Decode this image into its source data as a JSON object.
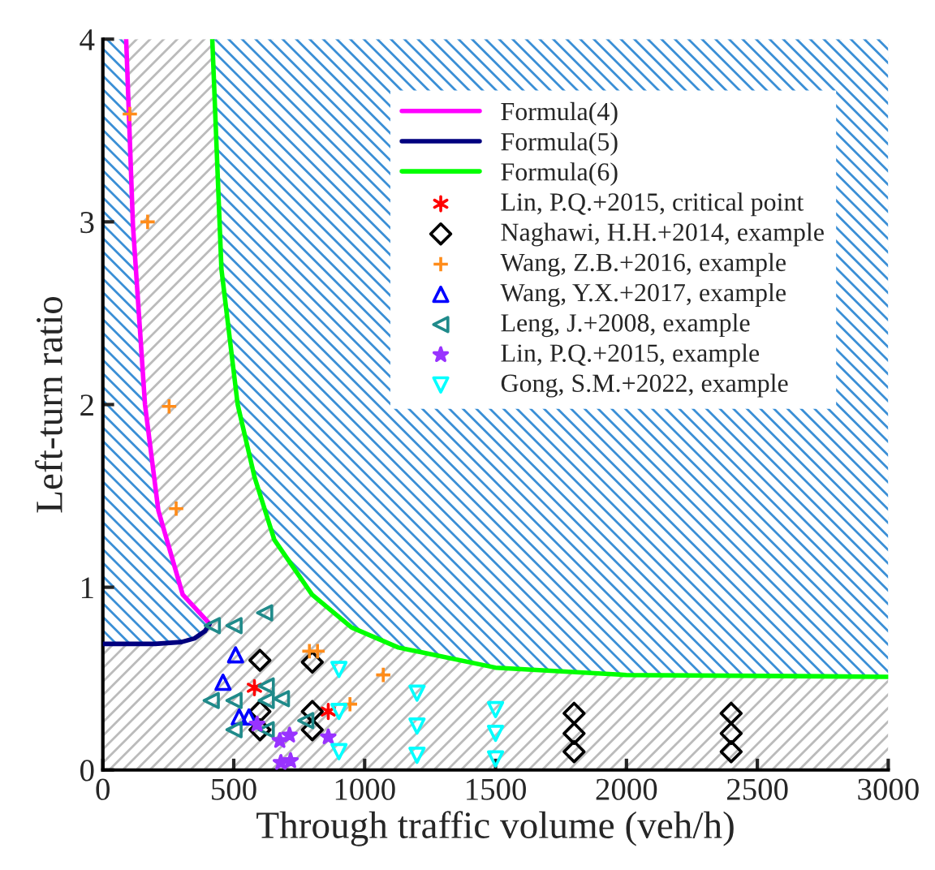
{
  "chart_data": {
    "type": "scatter",
    "xlabel": "Through traffic volume (veh/h)",
    "ylabel": "Left-turn ratio",
    "xlim": [
      0,
      3000
    ],
    "ylim": [
      0,
      4
    ],
    "xticks": [
      0,
      500,
      1000,
      1500,
      2000,
      2500,
      3000
    ],
    "yticks": [
      0,
      1,
      2,
      3,
      4
    ],
    "grid": false,
    "legend": "top right",
    "series": [
      {
        "name": "Formula(4)",
        "type": "line",
        "color": "#ff00ff",
        "marker": "none",
        "x": [
          89,
          115,
          161,
          212,
          305,
          408
        ],
        "values": [
          4,
          2.98,
          2.0,
          1.42,
          0.96,
          0.8
        ]
      },
      {
        "name": "Formula(5)",
        "type": "line",
        "color": "#00007f",
        "marker": "none",
        "x": [
          0,
          200,
          300,
          350,
          390,
          408
        ],
        "values": [
          0.69,
          0.69,
          0.7,
          0.72,
          0.76,
          0.8
        ]
      },
      {
        "name": "Formula(6)",
        "type": "line",
        "color": "#00ff00",
        "marker": "none",
        "x": [
          418,
          453,
          515,
          580,
          655,
          799,
          950,
          1129,
          1500,
          2000,
          3000
        ],
        "values": [
          4,
          2.74,
          2.0,
          1.6,
          1.26,
          0.96,
          0.78,
          0.67,
          0.56,
          0.52,
          0.51
        ],
        "lower": [
          4,
          2.74,
          2.0,
          1.6,
          1.26,
          0.96,
          0.78,
          0.67,
          0.56,
          0.52,
          0.51
        ],
        "upper": [
          4,
          4,
          4,
          4,
          4,
          4,
          4,
          4,
          4,
          4,
          4
        ]
      },
      {
        "name": "Lin, P.Q.+2015, critical point",
        "color": "#ff0000",
        "marker": "cross",
        "x": [
          579,
          861
        ],
        "values": [
          0.45,
          0.32
        ]
      },
      {
        "name": "Naghawi, H.H.+2014, example",
        "color": "#000000",
        "marker": "diamond",
        "x": [
          600,
          600,
          600,
          800,
          800,
          800,
          1800,
          1800,
          1800,
          2400,
          2400,
          2400
        ],
        "values": [
          0.6,
          0.32,
          0.22,
          0.59,
          0.32,
          0.22,
          0.31,
          0.2,
          0.1,
          0.31,
          0.2,
          0.1
        ]
      },
      {
        "name": "Wang, Z.B.+2016, example",
        "color": "#ff8c1a",
        "marker": "cross",
        "x": [
          103,
          171,
          253,
          280,
          789,
          820,
          1071,
          944
        ],
        "values": [
          3.59,
          3.0,
          1.99,
          1.43,
          0.65,
          0.65,
          0.52,
          0.36
        ]
      },
      {
        "name": "Wang, Y.X.+2017, example",
        "color": "#0000ff",
        "marker": "triangle",
        "x": [
          507,
          459,
          521,
          558
        ],
        "values": [
          0.63,
          0.48,
          0.29,
          0.29
        ]
      },
      {
        "name": "Leng, J.+2008, example",
        "color": "#1f8a8a",
        "marker": "triangle-left",
        "x": [
          418,
          501,
          618,
          624,
          414,
          501,
          682,
          624,
          501,
          624,
          775
        ],
        "values": [
          0.79,
          0.79,
          0.86,
          0.46,
          0.38,
          0.38,
          0.39,
          0.38,
          0.22,
          0.22,
          0.27
        ]
      },
      {
        "name": "Lin, P.Q.+2015, example",
        "color": "#9933ff",
        "marker": "star",
        "x": [
          589,
          676,
          713,
          680,
          717,
          861
        ],
        "values": [
          0.25,
          0.16,
          0.19,
          0.04,
          0.05,
          0.18
        ]
      },
      {
        "name": "Gong, S.M.+2022, example",
        "color": "#00ffff",
        "marker": "triangle-down",
        "x": [
          902,
          902,
          902,
          1200,
          1200,
          1200,
          1500,
          1500,
          1500
        ],
        "values": [
          0.55,
          0.32,
          0.1,
          0.42,
          0.24,
          0.08,
          0.33,
          0.2,
          0.06
        ]
      }
    ]
  }
}
